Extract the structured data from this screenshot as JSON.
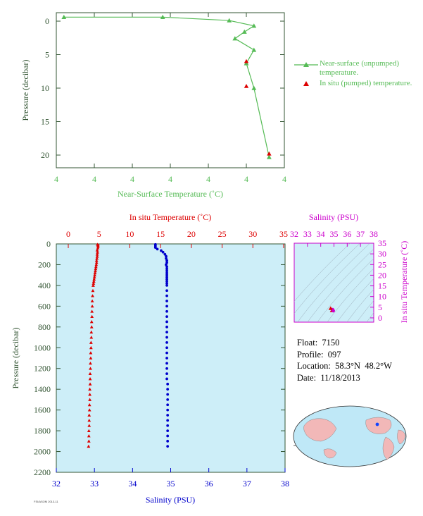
{
  "colors": {
    "green": "#55bb55",
    "red": "#dd0000",
    "blue": "#0000cc",
    "magenta": "#cc00cc",
    "axis_dark": "#335533",
    "panel_bg": "#cdeef8"
  },
  "chart_data": [
    {
      "type": "line",
      "xlabel": "Near-Surface Temperature (˚C)",
      "ylabel": "Pressure (decibar)",
      "x_tick_labels": [
        "4",
        "4",
        "4",
        "4",
        "4",
        "4",
        "4"
      ],
      "y_tick_labels": [
        "0",
        "5",
        "10",
        "15",
        "20"
      ],
      "ylim": [
        0,
        22
      ],
      "series": [
        {
          "name": "Near-surface (unpumped) temperature.",
          "marker": "triangle",
          "color": "#55bb55",
          "points": [
            {
              "t": 0.2,
              "p": -0.6
            },
            {
              "t": 2.8,
              "p": -0.6
            },
            {
              "t": 4.55,
              "p": -0.1
            },
            {
              "t": 5.2,
              "p": 0.7
            },
            {
              "t": 4.95,
              "p": 1.6
            },
            {
              "t": 4.7,
              "p": 2.6
            },
            {
              "t": 5.2,
              "p": 4.3
            },
            {
              "t": 5.0,
              "p": 6.3
            },
            {
              "t": 5.2,
              "p": 10.0
            },
            {
              "t": 5.6,
              "p": 20.3
            }
          ]
        },
        {
          "name": "In situ (pumped) temperature.",
          "marker": "triangle",
          "color": "#dd0000",
          "points": [
            {
              "t": 5.0,
              "p": 6.0
            },
            {
              "t": 5.0,
              "p": 9.7
            },
            {
              "t": 5.6,
              "p": 19.8
            }
          ]
        }
      ]
    },
    {
      "type": "scatter",
      "xlabel_top": "In situ Temperature (˚C)",
      "xlabel_bottom": "Salinity (PSU)",
      "ylabel": "Pressure (decibar)",
      "temperature_ticks": [
        "0",
        "5",
        "10",
        "15",
        "20",
        "25",
        "30",
        "35"
      ],
      "salinity_ticks": [
        "32",
        "33",
        "34",
        "35",
        "36",
        "37",
        "38"
      ],
      "pressure_ticks": [
        "0",
        "200",
        "400",
        "600",
        "800",
        "1000",
        "1200",
        "1400",
        "1600",
        "1800",
        "2000",
        "2200"
      ],
      "ylim": [
        0,
        2200
      ],
      "temperature_xlim": [
        -2,
        35
      ],
      "salinity_xlim": [
        32,
        38
      ],
      "series": [
        {
          "name": "In situ Temperature",
          "color": "#dd0000",
          "marker": "triangle",
          "points": [
            [
              4.75,
              5
            ],
            [
              4.8,
              20
            ],
            [
              4.8,
              40
            ],
            [
              4.7,
              60
            ],
            [
              4.75,
              80
            ],
            [
              4.7,
              100
            ],
            [
              4.7,
              120
            ],
            [
              4.65,
              140
            ],
            [
              4.6,
              160
            ],
            [
              4.6,
              180
            ],
            [
              4.55,
              200
            ],
            [
              4.5,
              220
            ],
            [
              4.45,
              240
            ],
            [
              4.4,
              260
            ],
            [
              4.35,
              280
            ],
            [
              4.3,
              300
            ],
            [
              4.25,
              320
            ],
            [
              4.2,
              340
            ],
            [
              4.15,
              360
            ],
            [
              4.1,
              380
            ],
            [
              4.05,
              400
            ],
            [
              4.0,
              450
            ],
            [
              3.95,
              500
            ],
            [
              3.9,
              550
            ],
            [
              3.9,
              600
            ],
            [
              3.85,
              650
            ],
            [
              3.85,
              700
            ],
            [
              3.8,
              750
            ],
            [
              3.8,
              800
            ],
            [
              3.75,
              850
            ],
            [
              3.75,
              900
            ],
            [
              3.7,
              950
            ],
            [
              3.7,
              1000
            ],
            [
              3.65,
              1050
            ],
            [
              3.65,
              1100
            ],
            [
              3.6,
              1150
            ],
            [
              3.6,
              1200
            ],
            [
              3.55,
              1250
            ],
            [
              3.55,
              1300
            ],
            [
              3.55,
              1350
            ],
            [
              3.5,
              1400
            ],
            [
              3.5,
              1450
            ],
            [
              3.5,
              1500
            ],
            [
              3.45,
              1550
            ],
            [
              3.45,
              1600
            ],
            [
              3.4,
              1650
            ],
            [
              3.4,
              1700
            ],
            [
              3.4,
              1750
            ],
            [
              3.35,
              1800
            ],
            [
              3.35,
              1850
            ],
            [
              3.35,
              1900
            ],
            [
              3.3,
              1950
            ]
          ]
        },
        {
          "name": "Salinity",
          "color": "#0000cc",
          "marker": "dot",
          "points": [
            [
              34.6,
              5
            ],
            [
              34.6,
              20
            ],
            [
              34.6,
              35
            ],
            [
              34.65,
              50
            ],
            [
              34.75,
              65
            ],
            [
              34.8,
              80
            ],
            [
              34.85,
              100
            ],
            [
              34.88,
              120
            ],
            [
              34.88,
              140
            ],
            [
              34.9,
              160
            ],
            [
              34.9,
              180
            ],
            [
              34.88,
              200
            ],
            [
              34.9,
              220
            ],
            [
              34.9,
              240
            ],
            [
              34.9,
              260
            ],
            [
              34.9,
              280
            ],
            [
              34.9,
              300
            ],
            [
              34.9,
              320
            ],
            [
              34.9,
              340
            ],
            [
              34.9,
              360
            ],
            [
              34.9,
              380
            ],
            [
              34.9,
              400
            ],
            [
              34.9,
              450
            ],
            [
              34.9,
              500
            ],
            [
              34.9,
              550
            ],
            [
              34.9,
              600
            ],
            [
              34.9,
              650
            ],
            [
              34.9,
              700
            ],
            [
              34.9,
              750
            ],
            [
              34.9,
              800
            ],
            [
              34.9,
              850
            ],
            [
              34.9,
              900
            ],
            [
              34.9,
              950
            ],
            [
              34.9,
              1000
            ],
            [
              34.9,
              1050
            ],
            [
              34.9,
              1100
            ],
            [
              34.9,
              1150
            ],
            [
              34.9,
              1200
            ],
            [
              34.9,
              1250
            ],
            [
              34.9,
              1300
            ],
            [
              34.92,
              1350
            ],
            [
              34.92,
              1400
            ],
            [
              34.92,
              1450
            ],
            [
              34.92,
              1500
            ],
            [
              34.92,
              1550
            ],
            [
              34.92,
              1600
            ],
            [
              34.92,
              1650
            ],
            [
              34.92,
              1700
            ],
            [
              34.92,
              1750
            ],
            [
              34.92,
              1800
            ],
            [
              34.92,
              1850
            ],
            [
              34.92,
              1900
            ],
            [
              34.92,
              1950
            ]
          ]
        }
      ]
    },
    {
      "type": "scatter",
      "title": "Salinity (PSU)",
      "ylabel": "In situ Temperature (˚C)",
      "salinity_ticks": [
        "32",
        "33",
        "34",
        "35",
        "36",
        "37",
        "38"
      ],
      "temperature_ticks": [
        "0",
        "5",
        "10",
        "15",
        "20",
        "25",
        "30",
        "35"
      ],
      "xlim": [
        32,
        38
      ],
      "ylim": [
        -2,
        35
      ],
      "points": [
        [
          34.85,
          3.5
        ],
        [
          34.9,
          3.9
        ],
        [
          34.75,
          4.5
        ],
        [
          34.95,
          3.3
        ]
      ]
    }
  ],
  "float_info": {
    "float": "Float:  7150",
    "profile": "Profile:  097",
    "location": "Location:  58.3°N  48.2°W",
    "date": "Date:  11/18/2013"
  },
  "legend": {
    "near_surface": "Near-surface (unpumped) temperature.",
    "in_situ": "In situ (pumped) temperature."
  },
  "stamp": "FSI/ASOM 2013-11"
}
